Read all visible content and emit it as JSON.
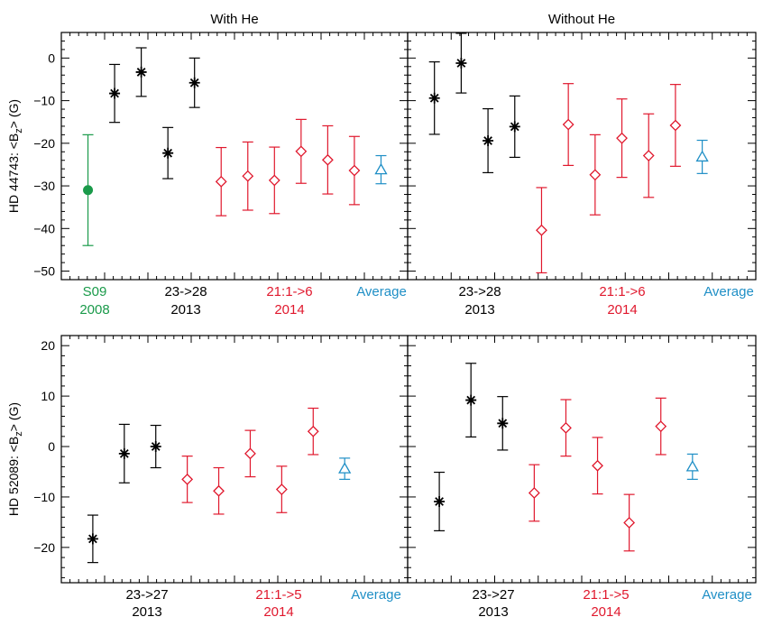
{
  "colors": {
    "black": "#000000",
    "red": "#e0182d",
    "green": "#1a9a4a",
    "blue": "#1f8fc6"
  },
  "chart_data": [
    {
      "type": "scatter",
      "panel": "top-left",
      "title": "With He",
      "ylabel": "HD 44743: <Bz> (G)",
      "ylim": [
        -52,
        6
      ],
      "yticks": [
        0,
        -10,
        -20,
        -30,
        -40,
        -50
      ],
      "xlim": [
        0,
        13
      ],
      "groups": [
        {
          "line1": "S09",
          "line2": "2008",
          "color": "green"
        },
        {
          "line1": "23->28",
          "line2": "2013",
          "color": "black"
        },
        {
          "line1": "21:1->6",
          "line2": "2014",
          "color": "red"
        },
        {
          "line1": "Average",
          "line2": "",
          "color": "blue"
        }
      ],
      "series": [
        {
          "marker": "circle",
          "color": "green",
          "points": [
            {
              "x": 1,
              "y": -31,
              "err": 13
            }
          ]
        },
        {
          "marker": "asterisk",
          "color": "black",
          "points": [
            {
              "x": 2,
              "y": -8.3,
              "err": 6.8
            },
            {
              "x": 3,
              "y": -3.3,
              "err": 5.7
            },
            {
              "x": 4,
              "y": -22.3,
              "err": 6
            },
            {
              "x": 5,
              "y": -5.8,
              "err": 5.8
            }
          ]
        },
        {
          "marker": "diamond",
          "color": "red",
          "points": [
            {
              "x": 6,
              "y": -29,
              "err": 8
            },
            {
              "x": 7,
              "y": -27.7,
              "err": 8
            },
            {
              "x": 8,
              "y": -28.7,
              "err": 7.8
            },
            {
              "x": 9,
              "y": -21.9,
              "err": 7.5
            },
            {
              "x": 10,
              "y": -23.9,
              "err": 8
            },
            {
              "x": 11,
              "y": -26.4,
              "err": 8
            }
          ]
        },
        {
          "marker": "triangle",
          "color": "blue",
          "points": [
            {
              "x": 12,
              "y": -26.2,
              "err": 3.3
            }
          ]
        }
      ]
    },
    {
      "type": "scatter",
      "panel": "top-right",
      "title": "Without He",
      "ylabel": "",
      "ylim": [
        -52,
        6
      ],
      "yticks": [
        0,
        -10,
        -20,
        -30,
        -40,
        -50
      ],
      "xlim": [
        0,
        13
      ],
      "groups": [
        {
          "line1": "23->28",
          "line2": "2013",
          "color": "black"
        },
        {
          "line1": "21:1->6",
          "line2": "2014",
          "color": "red"
        },
        {
          "line1": "Average",
          "line2": "",
          "color": "blue"
        }
      ],
      "series": [
        {
          "marker": "asterisk",
          "color": "black",
          "points": [
            {
              "x": 1,
              "y": -9.4,
              "err": 8.5
            },
            {
              "x": 2,
              "y": -1.2,
              "err": 7
            },
            {
              "x": 3,
              "y": -19.4,
              "err": 7.5
            },
            {
              "x": 4,
              "y": -16.1,
              "err": 7.2
            }
          ]
        },
        {
          "marker": "diamond",
          "color": "red",
          "points": [
            {
              "x": 5,
              "y": -40.4,
              "err": 10
            },
            {
              "x": 6,
              "y": -15.6,
              "err": 9.6
            },
            {
              "x": 7,
              "y": -27.4,
              "err": 9.4
            },
            {
              "x": 8,
              "y": -18.8,
              "err": 9.2
            },
            {
              "x": 9,
              "y": -22.9,
              "err": 9.8
            },
            {
              "x": 10,
              "y": -15.8,
              "err": 9.6
            }
          ]
        },
        {
          "marker": "triangle",
          "color": "blue",
          "points": [
            {
              "x": 11,
              "y": -23.2,
              "err": 3.9
            }
          ]
        }
      ]
    },
    {
      "type": "scatter",
      "panel": "bottom-left",
      "title": "",
      "ylabel": "HD 52089: <Bz> (G)",
      "ylim": [
        -27,
        22
      ],
      "yticks": [
        20,
        10,
        0,
        -10,
        -20
      ],
      "xlim": [
        0,
        11
      ],
      "groups": [
        {
          "line1": "23->27",
          "line2": "2013",
          "color": "black"
        },
        {
          "line1": "21:1->5",
          "line2": "2014",
          "color": "red"
        },
        {
          "line1": "Average",
          "line2": "",
          "color": "blue"
        }
      ],
      "series": [
        {
          "marker": "asterisk",
          "color": "black",
          "points": [
            {
              "x": 1,
              "y": -18.3,
              "err": 4.7
            },
            {
              "x": 2,
              "y": -1.4,
              "err": 5.8
            },
            {
              "x": 3,
              "y": 0.0,
              "err": 4.2
            }
          ]
        },
        {
          "marker": "diamond",
          "color": "red",
          "points": [
            {
              "x": 4,
              "y": -6.5,
              "err": 4.6
            },
            {
              "x": 5,
              "y": -8.8,
              "err": 4.6
            },
            {
              "x": 6,
              "y": -1.4,
              "err": 4.6
            },
            {
              "x": 7,
              "y": -8.5,
              "err": 4.6
            },
            {
              "x": 8,
              "y": 3.0,
              "err": 4.6
            }
          ]
        },
        {
          "marker": "triangle",
          "color": "blue",
          "points": [
            {
              "x": 9,
              "y": -4.4,
              "err": 2.1
            }
          ]
        }
      ]
    },
    {
      "type": "scatter",
      "panel": "bottom-right",
      "title": "",
      "ylabel": "",
      "ylim": [
        -27,
        22
      ],
      "yticks": [
        20,
        10,
        0,
        -10,
        -20
      ],
      "xlim": [
        0,
        11
      ],
      "groups": [
        {
          "line1": "23->27",
          "line2": "2013",
          "color": "black"
        },
        {
          "line1": "21:1->5",
          "line2": "2014",
          "color": "red"
        },
        {
          "line1": "Average",
          "line2": "",
          "color": "blue"
        }
      ],
      "series": [
        {
          "marker": "asterisk",
          "color": "black",
          "points": [
            {
              "x": 1,
              "y": -10.9,
              "err": 5.8
            },
            {
              "x": 2,
              "y": 9.2,
              "err": 7.3
            },
            {
              "x": 3,
              "y": 4.6,
              "err": 5.3
            }
          ]
        },
        {
          "marker": "diamond",
          "color": "red",
          "points": [
            {
              "x": 4,
              "y": -9.2,
              "err": 5.6
            },
            {
              "x": 5,
              "y": 3.7,
              "err": 5.6
            },
            {
              "x": 6,
              "y": -3.8,
              "err": 5.6
            },
            {
              "x": 7,
              "y": -15.1,
              "err": 5.6
            },
            {
              "x": 8,
              "y": 4.0,
              "err": 5.6
            }
          ]
        },
        {
          "marker": "triangle",
          "color": "blue",
          "points": [
            {
              "x": 9,
              "y": -4.0,
              "err": 2.5
            }
          ]
        }
      ]
    }
  ]
}
